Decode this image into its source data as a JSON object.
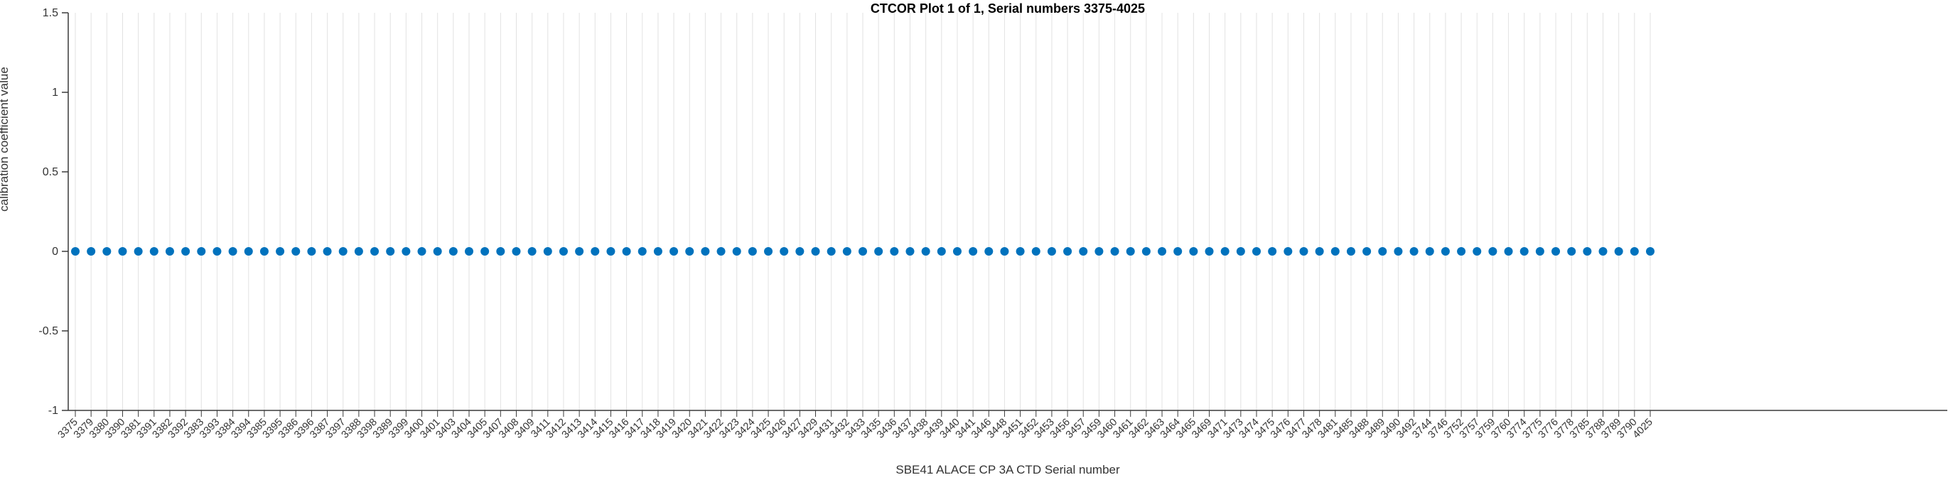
{
  "chart_data": {
    "type": "scatter",
    "title": "CTCOR Plot 1 of 1, Serial numbers 3375-4025",
    "xlabel": "SBE41 ALACE CP 3A CTD Serial number",
    "ylabel": "calibration coefficient value",
    "ylim": [
      -1,
      1.5
    ],
    "yticks": [
      -1,
      -0.5,
      0,
      0.5,
      1,
      1.5
    ],
    "ytick_labels": [
      "-1",
      "-0.5",
      "0",
      "0.5",
      "1",
      "1.5"
    ],
    "grid": "vertical-only",
    "legend": "none",
    "marker": "filled-circle",
    "categories": [
      "3375",
      "3379",
      "3380",
      "3390",
      "3381",
      "3391",
      "3382",
      "3392",
      "3383",
      "3393",
      "3384",
      "3394",
      "3385",
      "3395",
      "3386",
      "3396",
      "3387",
      "3397",
      "3388",
      "3398",
      "3389",
      "3399",
      "3400",
      "3401",
      "3403",
      "3404",
      "3405",
      "3407",
      "3408",
      "3409",
      "3411",
      "3412",
      "3413",
      "3414",
      "3415",
      "3416",
      "3417",
      "3418",
      "3419",
      "3420",
      "3421",
      "3422",
      "3423",
      "3424",
      "3425",
      "3426",
      "3427",
      "3429",
      "3431",
      "3432",
      "3433",
      "3435",
      "3436",
      "3437",
      "3438",
      "3439",
      "3440",
      "3441",
      "3446",
      "3448",
      "3451",
      "3452",
      "3453",
      "3456",
      "3457",
      "3459",
      "3460",
      "3461",
      "3462",
      "3463",
      "3464",
      "3465",
      "3469",
      "3471",
      "3473",
      "3474",
      "3475",
      "3476",
      "3477",
      "3478",
      "3481",
      "3485",
      "3488",
      "3489",
      "3490",
      "3492",
      "3744",
      "3746",
      "3752",
      "3757",
      "3759",
      "3760",
      "3774",
      "3775",
      "3776",
      "3778",
      "3785",
      "3788",
      "3789",
      "3790",
      "4025"
    ],
    "values": [
      0,
      0,
      0,
      0,
      0,
      0,
      0,
      0,
      0,
      0,
      0,
      0,
      0,
      0,
      0,
      0,
      0,
      0,
      0,
      0,
      0,
      0,
      0,
      0,
      0,
      0,
      0,
      0,
      0,
      0,
      0,
      0,
      0,
      0,
      0,
      0,
      0,
      0,
      0,
      0,
      0,
      0,
      0,
      0,
      0,
      0,
      0,
      0,
      0,
      0,
      0,
      0,
      0,
      0,
      0,
      0,
      0,
      0,
      0,
      0,
      0,
      0,
      0,
      0,
      0,
      0,
      0,
      0,
      0,
      0,
      0,
      0,
      0,
      0,
      0,
      0,
      0,
      0,
      0,
      0,
      0,
      0,
      0,
      0,
      0,
      0,
      0,
      0,
      0,
      0,
      0,
      0,
      0,
      0,
      0,
      0,
      0,
      0,
      0,
      0,
      0
    ],
    "colors": {
      "marker": "#0072BD",
      "grid": "#e2e2e2",
      "axis": "#3a3a3a",
      "tick_text": "#333333",
      "title_text": "#000000"
    }
  }
}
